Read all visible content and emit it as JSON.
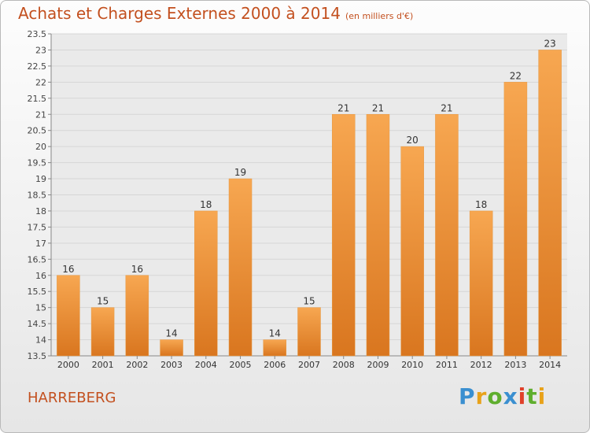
{
  "title": "Achats et Charges Externes 2000 à 2014",
  "unit_label": "(en milliers d'€)",
  "location": "HARREBERG",
  "logo": {
    "text": "Proxiti",
    "letters": [
      {
        "char": "P",
        "color": "#3a8fd0"
      },
      {
        "char": "r",
        "color": "#e8a21a"
      },
      {
        "char": "o",
        "color": "#5fae2e"
      },
      {
        "char": "x",
        "color": "#3a8fd0"
      },
      {
        "char": "i",
        "color": "#e0402a"
      },
      {
        "char": "t",
        "color": "#5fae2e"
      },
      {
        "char": "i",
        "color": "#e8a21a"
      }
    ]
  },
  "colors": {
    "accent": "#c3501f",
    "bar_top": "#f7a751",
    "bar_bottom": "#d9761f",
    "plot_bg": "#eaeaea",
    "grid": "#d6d6d6"
  },
  "chart_data": {
    "type": "bar",
    "categories": [
      "2000",
      "2001",
      "2002",
      "2003",
      "2004",
      "2005",
      "2006",
      "2007",
      "2008",
      "2009",
      "2010",
      "2011",
      "2012",
      "2013",
      "2014"
    ],
    "values": [
      16,
      15,
      16,
      14,
      18,
      19,
      14,
      15,
      21,
      21,
      20,
      21,
      18,
      22,
      23
    ],
    "ylim": [
      13.5,
      23.5
    ],
    "yticks": [
      13.5,
      14,
      14.5,
      15,
      15.5,
      16,
      16.5,
      17,
      17.5,
      18,
      18.5,
      19,
      19.5,
      20,
      20.5,
      21,
      21.5,
      22,
      22.5,
      23,
      23.5
    ],
    "grid": true,
    "legend": "none"
  }
}
